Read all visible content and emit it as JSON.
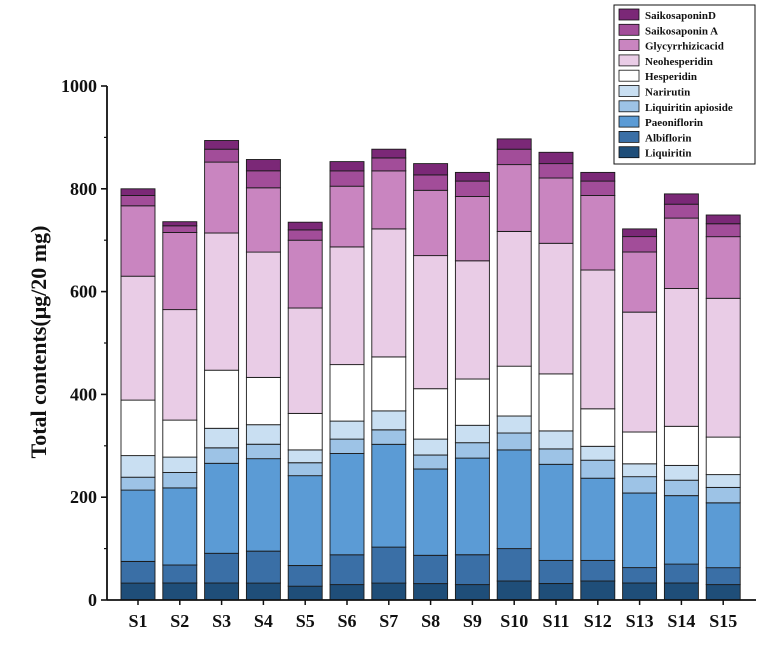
{
  "chart_data": {
    "type": "stacked-bar",
    "title": "",
    "xlabel": "",
    "ylabel": "Total contents(μg/20 mg)",
    "ylim": [
      0,
      1000
    ],
    "yticks": [
      0,
      200,
      400,
      600,
      800,
      1000
    ],
    "legend_position": "top-right",
    "categories": [
      "S1",
      "S2",
      "S3",
      "S4",
      "S5",
      "S6",
      "S7",
      "S8",
      "S9",
      "S10",
      "S11",
      "S12",
      "S13",
      "S14",
      "S15"
    ],
    "series": [
      {
        "name": "Liquiritin",
        "color": "#1f4e79",
        "values": [
          33,
          33,
          33,
          33,
          27,
          30,
          33,
          32,
          30,
          37,
          32,
          37,
          33,
          33,
          30
        ]
      },
      {
        "name": "Albiflorin",
        "color": "#3a6fa6",
        "values": [
          42,
          35,
          58,
          62,
          40,
          58,
          70,
          55,
          58,
          63,
          45,
          40,
          30,
          37,
          33
        ]
      },
      {
        "name": "Paeoniflorin",
        "color": "#5b9bd5",
        "values": [
          139,
          150,
          175,
          180,
          175,
          197,
          200,
          168,
          188,
          192,
          187,
          160,
          145,
          133,
          126
        ]
      },
      {
        "name": "Liquiritin apioside",
        "color": "#9dc3e6",
        "values": [
          25,
          30,
          30,
          28,
          25,
          28,
          28,
          27,
          30,
          33,
          30,
          35,
          32,
          30,
          30
        ]
      },
      {
        "name": "Narirutin",
        "color": "#c9dff2",
        "values": [
          42,
          30,
          38,
          38,
          25,
          35,
          37,
          31,
          34,
          33,
          35,
          27,
          25,
          29,
          25
        ]
      },
      {
        "name": "Hesperidin",
        "color": "#ffffff",
        "values": [
          108,
          72,
          113,
          92,
          71,
          110,
          105,
          98,
          90,
          97,
          111,
          73,
          62,
          76,
          73
        ]
      },
      {
        "name": "Neohesperidin",
        "color": "#e9cce6",
        "values": [
          241,
          215,
          267,
          244,
          205,
          229,
          249,
          259,
          230,
          262,
          254,
          270,
          233,
          268,
          270
        ]
      },
      {
        "name": "Glycyrrhizicacid",
        "color": "#c985c0",
        "values": [
          137,
          150,
          138,
          125,
          132,
          118,
          113,
          127,
          125,
          130,
          127,
          145,
          117,
          137,
          120
        ]
      },
      {
        "name": "Saikosaponin A",
        "color": "#a24d99",
        "values": [
          20,
          13,
          25,
          33,
          20,
          30,
          25,
          30,
          30,
          30,
          28,
          28,
          30,
          27,
          25
        ]
      },
      {
        "name": "SaikosaponinD",
        "color": "#7b2877",
        "values": [
          13,
          8,
          17,
          22,
          15,
          18,
          17,
          22,
          17,
          20,
          22,
          17,
          15,
          20,
          17
        ]
      }
    ]
  }
}
